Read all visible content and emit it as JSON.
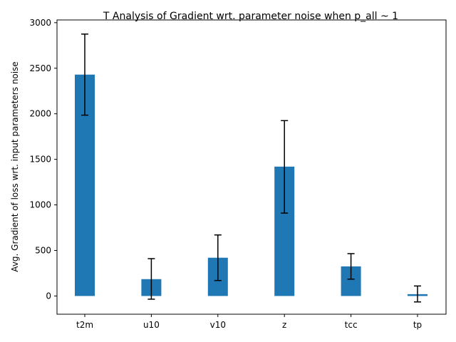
{
  "chart_data": {
    "type": "bar",
    "title": "T Analysis of Gradient wrt. parameter noise when p_all ~ 1",
    "xlabel": "",
    "ylabel": "Avg. Gradient of loss wrt. input parameters noise",
    "categories": [
      "t2m",
      "u10",
      "v10",
      "z",
      "tcc",
      "tp"
    ],
    "values": [
      2430,
      185,
      420,
      1420,
      325,
      20
    ],
    "error_low": [
      1985,
      -35,
      170,
      910,
      185,
      -65
    ],
    "error_high": [
      2875,
      410,
      670,
      1925,
      465,
      110
    ],
    "ylim": [
      -200,
      3030
    ],
    "yticks": [
      0,
      500,
      1000,
      1500,
      2000,
      2500,
      3000
    ],
    "bar_color": "#1f77b4",
    "error_color": "#000000",
    "grid": false
  }
}
